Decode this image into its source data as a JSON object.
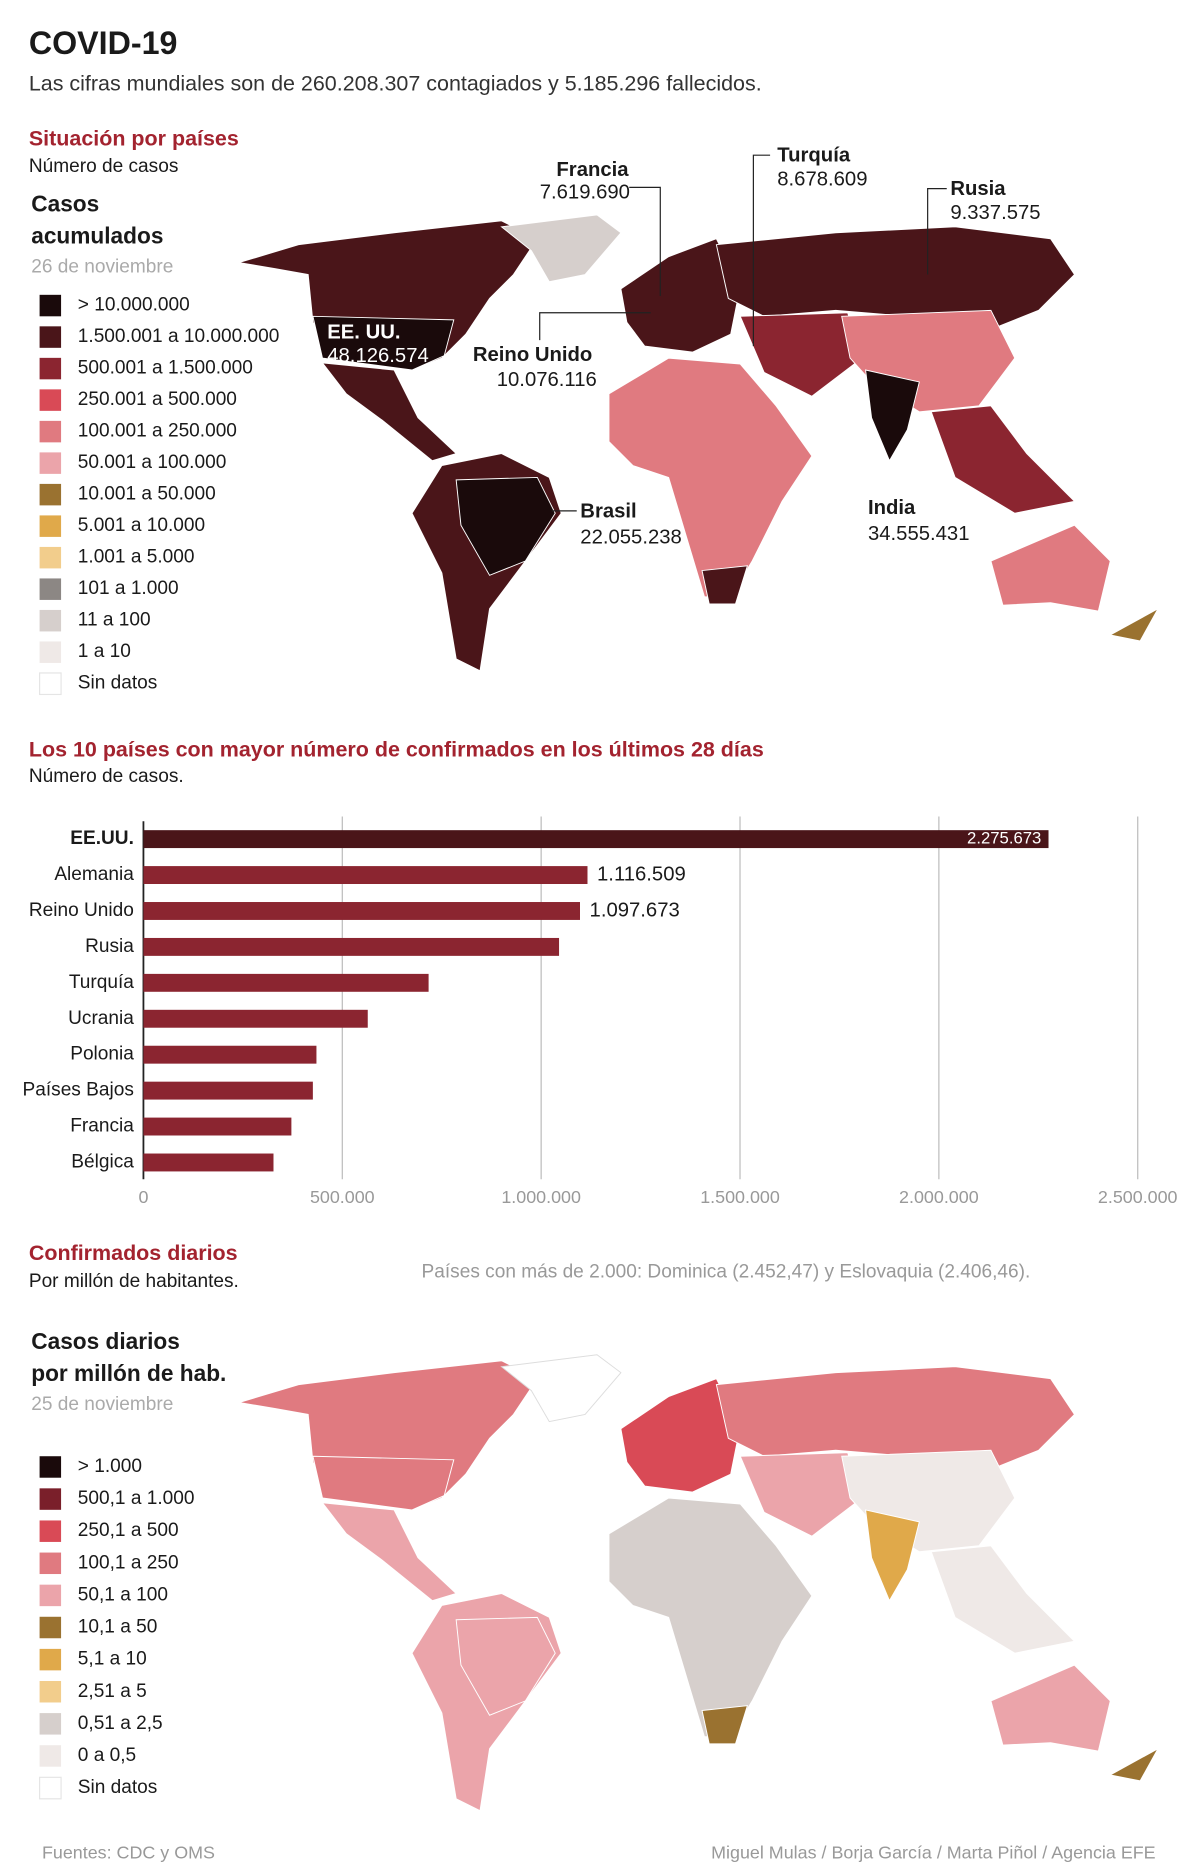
{
  "header": {
    "title": "COVID-19",
    "subtitle": "Las cifras mundiales son de 260.208.307 contagiados y 5.185.296 fallecidos."
  },
  "map_cases": {
    "title": "Situación por países",
    "subtitle": "Número de casos",
    "legend_title": [
      "Casos",
      "acumulados"
    ],
    "date": "26 de noviembre",
    "legend": [
      {
        "label": "> 10.000.000",
        "color": "#1a0a0b"
      },
      {
        "label": "1.500.001 a 10.000.000",
        "color": "#4a1519"
      },
      {
        "label": "500.001 a 1.500.000",
        "color": "#8b2530"
      },
      {
        "label": "250.001 a 500.000",
        "color": "#d94a56"
      },
      {
        "label": "100.001 a 250.000",
        "color": "#e07a80"
      },
      {
        "label": "50.001 a 100.000",
        "color": "#eba4aa"
      },
      {
        "label": "10.001 a 50.000",
        "color": "#9a7230"
      },
      {
        "label": "5.001 a 10.000",
        "color": "#e0a94a"
      },
      {
        "label": "1.001 a 5.000",
        "color": "#f2cd8c"
      },
      {
        "label": "101 a 1.000",
        "color": "#8c8784"
      },
      {
        "label": "11 a 100",
        "color": "#d6cfcc"
      },
      {
        "label": "1 a 10",
        "color": "#efe9e7"
      },
      {
        "label": "Sin datos",
        "color": "#ffffff"
      }
    ],
    "annotations": [
      {
        "name": "Francia",
        "value": "7.619.690"
      },
      {
        "name": "Turquía",
        "value": "8.678.609"
      },
      {
        "name": "Rusia",
        "value": "9.337.575"
      },
      {
        "name": "EE. UU.",
        "value": "48.126.574"
      },
      {
        "name": "Reino Unido",
        "value": "10.076.116"
      },
      {
        "name": "Brasil",
        "value": "22.055.238"
      },
      {
        "name": "India",
        "value": "34.555.431"
      }
    ]
  },
  "chart_data": {
    "type": "bar",
    "orientation": "horizontal",
    "title": "Los 10 países con mayor número de confirmados en los últimos 28 días",
    "subtitle": "Número de casos.",
    "categories": [
      "EE.UU.",
      "Alemania",
      "Reino Unido",
      "Rusia",
      "Turquía",
      "Ucrania",
      "Polonia",
      "Países Bajos",
      "Francia",
      "Bélgica"
    ],
    "values": [
      2275673,
      1116509,
      1097673,
      1045000,
      717000,
      564000,
      435000,
      426000,
      372000,
      327000
    ],
    "value_labels": [
      "2.275.673",
      "1.116.509",
      "1.097.673",
      null,
      null,
      null,
      null,
      null,
      null,
      null
    ],
    "colors": [
      "#4a1519",
      "#8b2530",
      "#8b2530",
      "#8b2530",
      "#8b2530",
      "#8b2530",
      "#8b2530",
      "#8b2530",
      "#8b2530",
      "#8b2530"
    ],
    "xlim": [
      0,
      2500000
    ],
    "xticks": [
      0,
      {
        "value": 500000,
        "label": "500.000"
      },
      {
        "value": 1000000,
        "label": "1.000.000"
      },
      {
        "value": 1500000,
        "label": "1.500.000"
      },
      {
        "value": 2000000,
        "label": "2.000.000"
      },
      {
        "value": 2500000,
        "label": "2.500.000"
      }
    ],
    "grid": true
  },
  "map_daily": {
    "title": "Confirmados diarios",
    "subtitle": "Por millón de habitantes.",
    "note": "Países con más de 2.000: Dominica (2.452,47) y Eslovaquia (2.406,46).",
    "legend_title": [
      "Casos diarios",
      "por millón de hab."
    ],
    "date": "25 de noviembre",
    "legend": [
      {
        "label": "> 1.000",
        "color": "#1a0a0b"
      },
      {
        "label": "500,1 a 1.000",
        "color": "#7a1f2a"
      },
      {
        "label": "250,1 a 500",
        "color": "#d94a56"
      },
      {
        "label": "100,1 a 250",
        "color": "#e07a80"
      },
      {
        "label": "50,1 a 100",
        "color": "#eba4aa"
      },
      {
        "label": "10,1 a 50",
        "color": "#9a7230"
      },
      {
        "label": "5,1 a 10",
        "color": "#e0a94a"
      },
      {
        "label": "2,51 a 5",
        "color": "#f2cd8c"
      },
      {
        "label": "0,51 a 2,5",
        "color": "#d6cfcc"
      },
      {
        "label": "0 a 0,5",
        "color": "#efe9e7"
      },
      {
        "label": "Sin datos",
        "color": "#ffffff"
      }
    ]
  },
  "footer": {
    "source": "Fuentes: CDC y OMS",
    "credits": "Miguel Mulas / Borja García / Marta Piñol / Agencia EFE"
  }
}
